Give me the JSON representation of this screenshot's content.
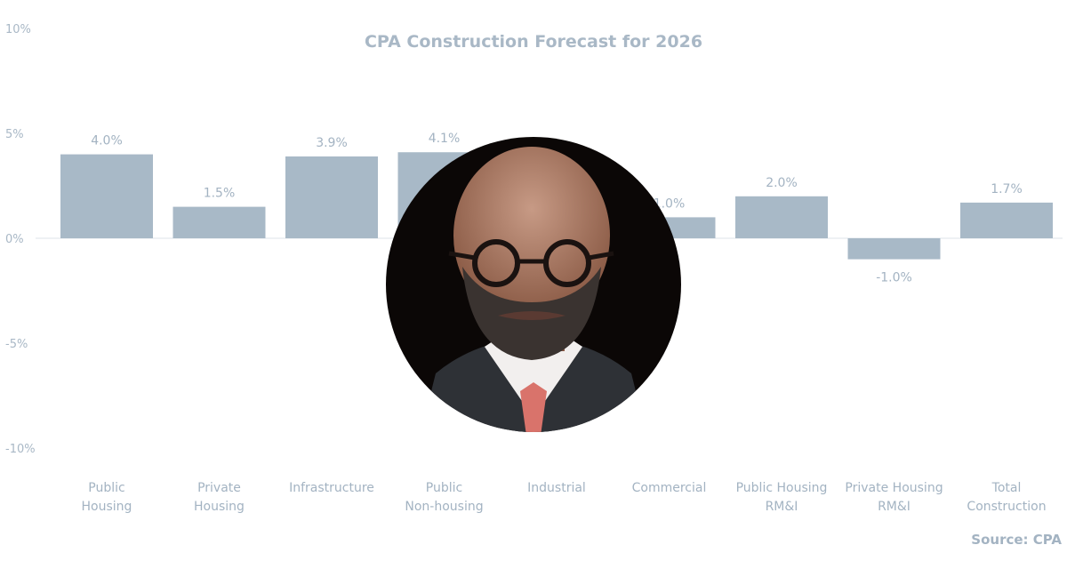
{
  "chart_data": {
    "type": "bar",
    "title": "CPA Construction Forecast for 2026",
    "source": "Source: CPA",
    "categories": [
      [
        "Public",
        "Housing"
      ],
      [
        "Private",
        "Housing"
      ],
      [
        "Infrastructure"
      ],
      [
        "Public",
        "Non-housing"
      ],
      [
        "Industrial"
      ],
      [
        "Commercial"
      ],
      [
        "Public Housing",
        "RM&I"
      ],
      [
        "Private Housing",
        "RM&I"
      ],
      [
        "Total",
        "Construction"
      ]
    ],
    "values": [
      4.0,
      1.5,
      3.9,
      4.1,
      null,
      1.0,
      2.0,
      -1.0,
      1.7
    ],
    "data_labels": [
      "4.0%",
      "1.5%",
      "3.9%",
      "4.1%",
      "",
      "1.0%",
      "2.0%",
      "-1.0%",
      "1.7%"
    ],
    "ylim": [
      -10,
      10
    ],
    "yticks": [
      10,
      5,
      0,
      -5,
      -10
    ],
    "ytick_labels": [
      "10%",
      "5%",
      "0%",
      "-5%",
      "-10%"
    ],
    "grid": false,
    "colors": {
      "bar": "#a8b9c7",
      "text": "#a3b3c2"
    }
  },
  "overlay": {
    "type": "circular-portrait-photo"
  }
}
